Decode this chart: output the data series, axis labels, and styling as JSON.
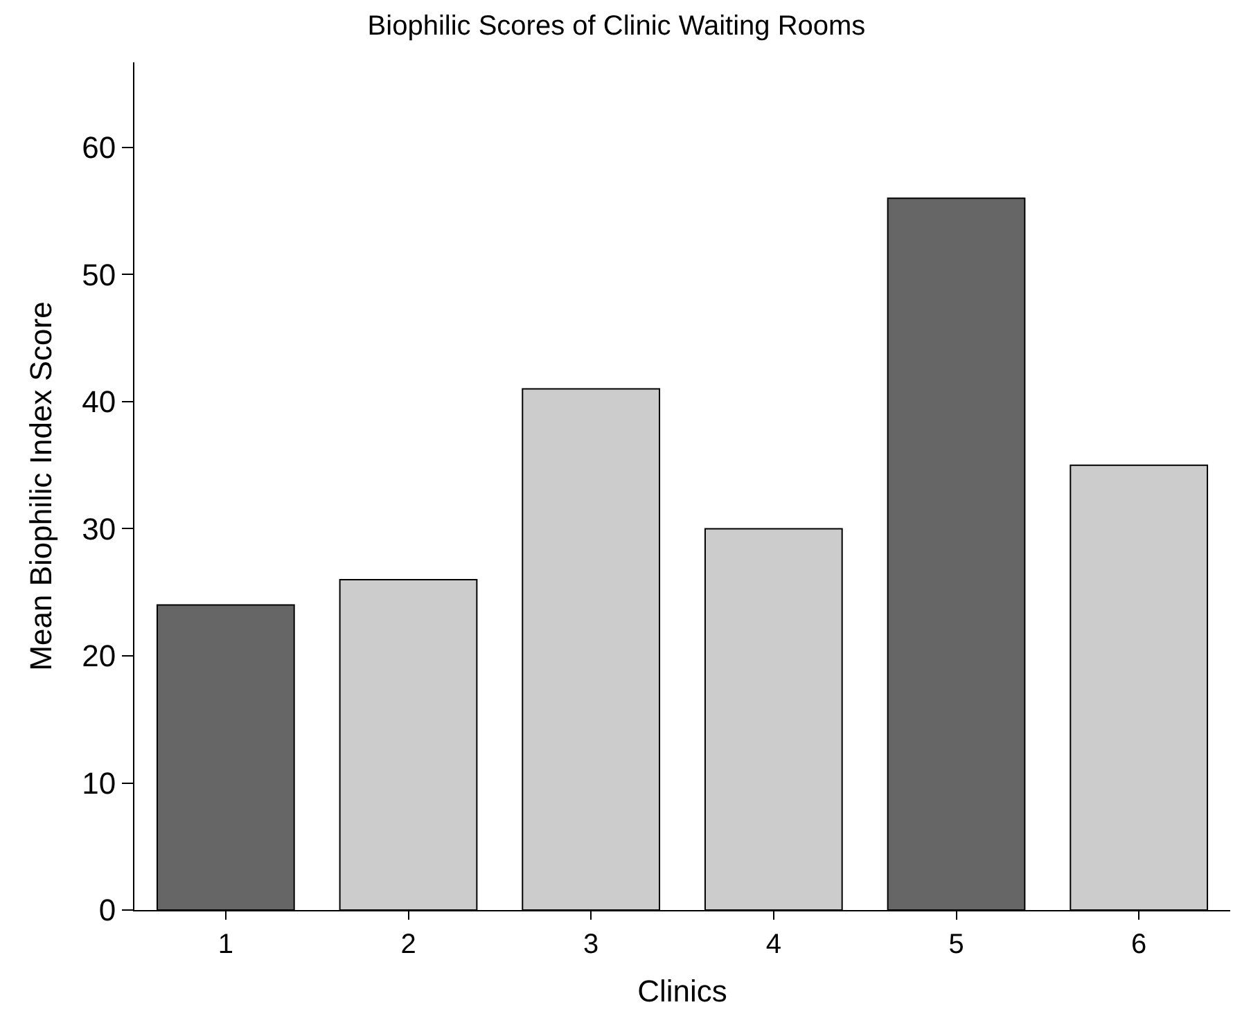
{
  "chart_data": {
    "type": "bar",
    "title": "Biophilic Scores of Clinic Waiting Rooms",
    "xlabel": "Clinics",
    "ylabel": "Mean Biophilic Index Score",
    "categories": [
      "1",
      "2",
      "3",
      "4",
      "5",
      "6"
    ],
    "values": [
      24,
      26,
      41,
      30,
      56,
      35
    ],
    "colors": [
      "#666666",
      "#cccccc",
      "#cccccc",
      "#cccccc",
      "#666666",
      "#cccccc"
    ],
    "ylim": [
      0,
      66.7
    ],
    "yticks": [
      0,
      10,
      20,
      30,
      40,
      50,
      60
    ]
  }
}
